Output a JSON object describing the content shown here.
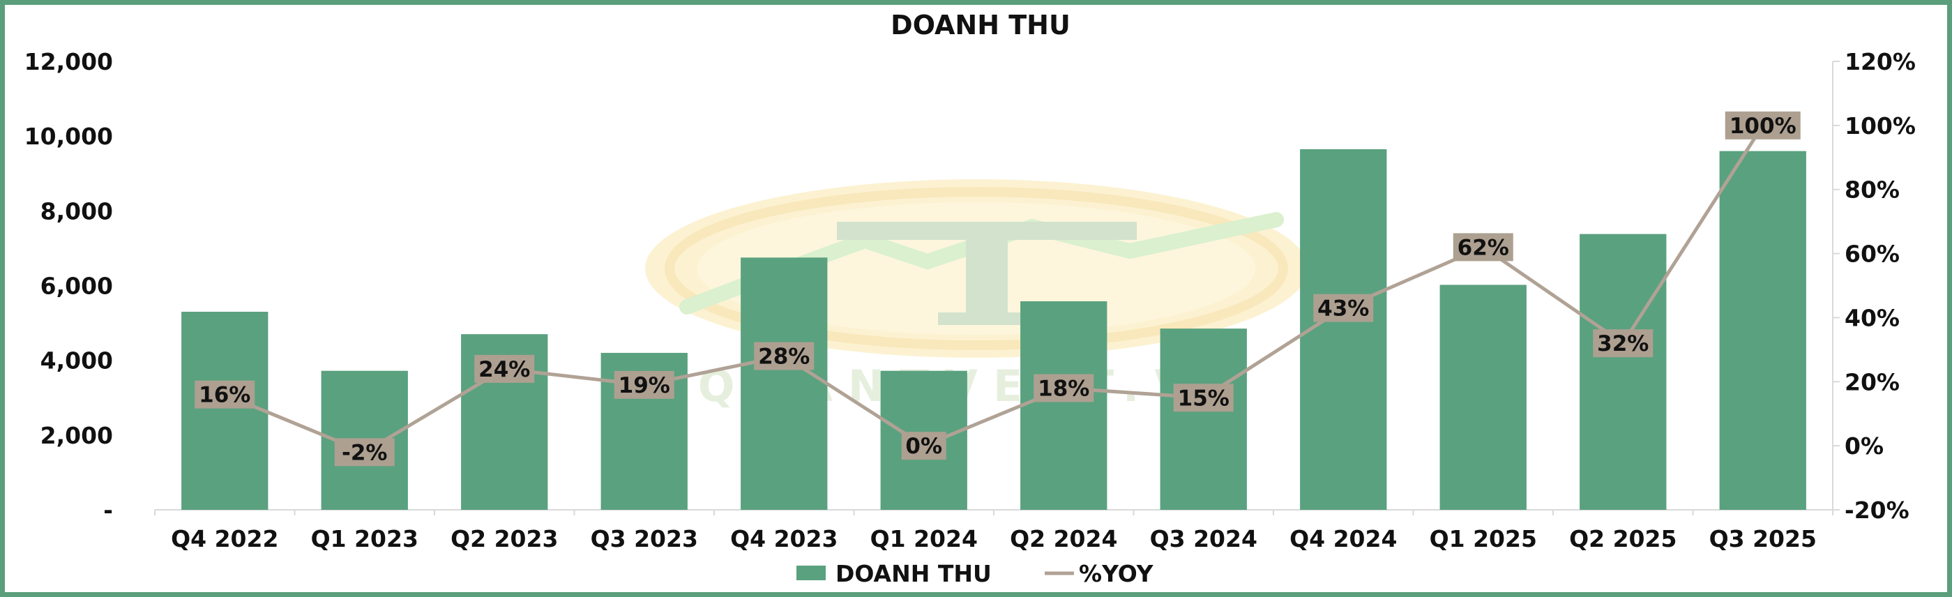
{
  "chart_data": {
    "type": "bar",
    "title": "DOANH THU",
    "categories": [
      "Q4 2022",
      "Q1 2023",
      "Q2 2023",
      "Q3 2023",
      "Q4 2023",
      "Q1 2024",
      "Q2 2024",
      "Q3 2024",
      "Q4 2024",
      "Q1 2025",
      "Q2 2025",
      "Q3 2025"
    ],
    "series": [
      {
        "name": "DOANH THU",
        "type": "bar",
        "axis": "left",
        "color": "#5aa17f",
        "values": [
          5300,
          3720,
          4700,
          4200,
          6750,
          3720,
          5580,
          4850,
          9650,
          6020,
          7380,
          9600
        ]
      },
      {
        "name": "%YOY",
        "type": "line",
        "axis": "right",
        "color": "#b0a295",
        "values": [
          16,
          -2,
          24,
          19,
          28,
          0,
          18,
          15,
          43,
          62,
          32,
          100
        ],
        "labels": [
          "16%",
          "-2%",
          "24%",
          "19%",
          "28%",
          "0%",
          "18%",
          "15%",
          "43%",
          "62%",
          "32%",
          "100%"
        ]
      }
    ],
    "y_left": {
      "range": [
        0,
        12000
      ],
      "ticks": [
        0,
        2000,
        4000,
        6000,
        8000,
        10000,
        12000
      ],
      "tick_labels": [
        "-",
        "2,000",
        "4,000",
        "6,000",
        "8,000",
        "10,000",
        "12,000"
      ]
    },
    "y_right": {
      "range": [
        -20,
        120
      ],
      "ticks": [
        -20,
        0,
        20,
        40,
        60,
        80,
        100,
        120
      ],
      "tick_labels": [
        "-20%",
        "0%",
        "20%",
        "40%",
        "60%",
        "80%",
        "100%",
        "120%"
      ]
    },
    "grid": false,
    "legend": "bottom-center",
    "label_box_color": "#ada091",
    "border_color": "#5a9e7c",
    "watermark_text": "QUANTVEST.VN"
  }
}
